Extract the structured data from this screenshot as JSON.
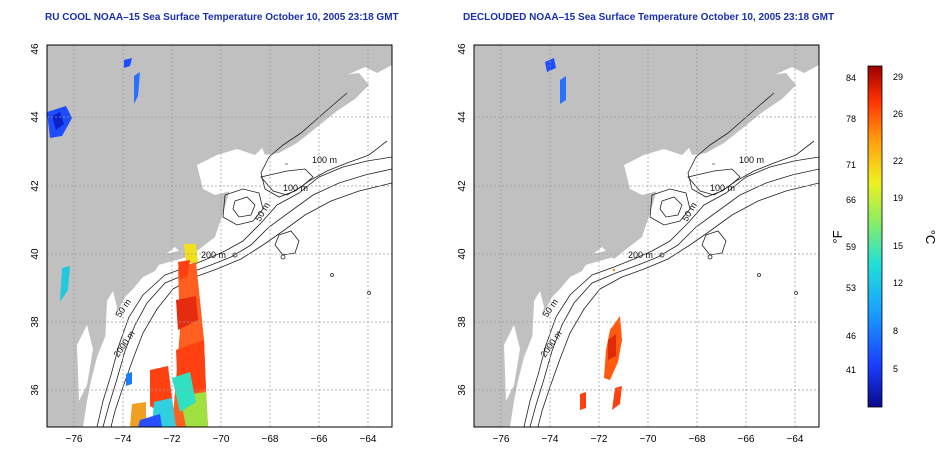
{
  "panels": [
    {
      "title": "RU COOL NOAA–15 Sea Surface Temperature October 10, 2005 23:18 GMT",
      "contour_labels": [
        "100 m",
        "100 m",
        "50 m",
        "200 m",
        "50 m",
        "2000 m"
      ]
    },
    {
      "title": "DECLOUDED NOAA–15 Sea Surface Temperature October 10, 2005 23:18 GMT",
      "contour_labels": [
        "100 m",
        "100 m",
        "50 m",
        "200 m",
        "50 m",
        "2000 m"
      ]
    }
  ],
  "axes": {
    "lon_ticks": [
      "−76",
      "−74",
      "−72",
      "−70",
      "−68",
      "−66",
      "−64"
    ],
    "lat_ticks": [
      "36",
      "38",
      "40",
      "42",
      "44",
      "46"
    ]
  },
  "colorbar": {
    "unit_left": "°F",
    "unit_right": "°C",
    "fahrenheit_ticks": [
      "84",
      "78",
      "71",
      "66",
      "59",
      "53",
      "46",
      "41"
    ],
    "celsius_ticks": [
      "29",
      "26",
      "22",
      "19",
      "15",
      "12",
      "8",
      "5"
    ]
  },
  "colors": {
    "land": "#c0c0c0",
    "ocean": "#ffffff",
    "contour": "#222222",
    "title": "#1a2fb0",
    "grid": "#9a9a9a"
  }
}
